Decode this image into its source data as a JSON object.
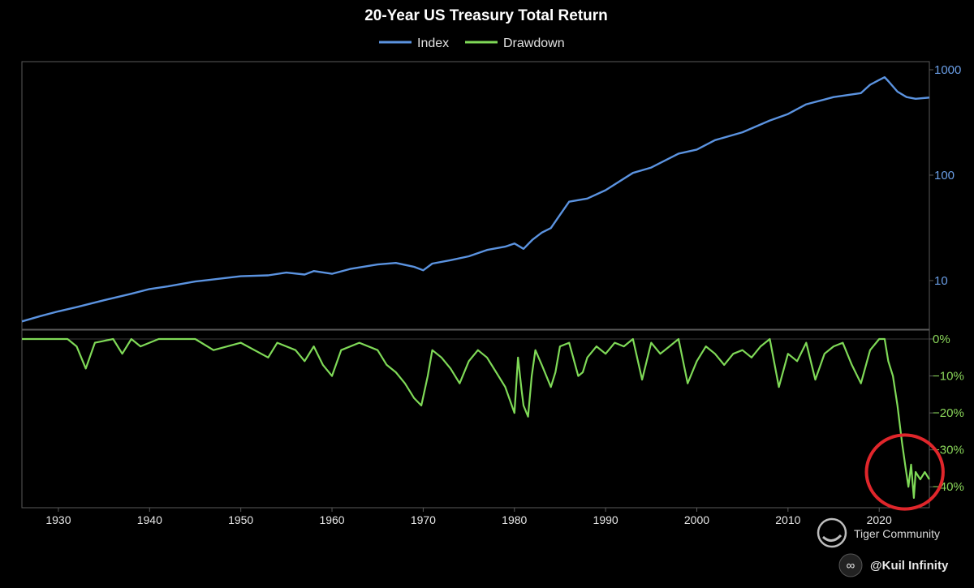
{
  "chart_data": {
    "type": "line",
    "title": "20-Year US Treasury Total Return",
    "legend": {
      "placement": "top-center",
      "entries": [
        "Index",
        "Drawdown"
      ]
    },
    "colors": {
      "index": "#5b93e0",
      "drawdown": "#7fd957",
      "annotation": "#e0262b",
      "frame": "#5a5a5a"
    },
    "xlim": [
      1926,
      2025.5
    ],
    "x_ticks": [
      1930,
      1940,
      1950,
      1960,
      1970,
      1980,
      1990,
      2000,
      2010,
      2020
    ],
    "x_tick_labels": [
      "1930",
      "1940",
      "1950",
      "1960",
      "1970",
      "1980",
      "1990",
      "2000",
      "2010",
      "2020"
    ],
    "panels": [
      {
        "series_key": "index",
        "scale": "log",
        "ylim": [
          4.5,
          1000
        ],
        "y_ticks": [
          10,
          100,
          1000
        ],
        "y_tick_labels": [
          "10",
          "100",
          "1000"
        ],
        "axis_side": "right"
      },
      {
        "series_key": "drawdown",
        "scale": "linear",
        "ylim": [
          -45,
          0
        ],
        "y_ticks": [
          0,
          -10,
          -20,
          -30,
          -40
        ],
        "y_tick_labels": [
          "0%",
          "−10%",
          "−20%",
          "−30%",
          "−40%"
        ],
        "axis_side": "right"
      }
    ],
    "series": [
      {
        "name": "Index",
        "key": "index",
        "x": [
          1926,
          1928,
          1930,
          1932,
          1935,
          1938,
          1940,
          1942,
          1945,
          1948,
          1950,
          1953,
          1955,
          1957,
          1958,
          1960,
          1962,
          1965,
          1967,
          1969,
          1970,
          1971,
          1973,
          1975,
          1977,
          1979,
          1980,
          1981,
          1982,
          1983,
          1984,
          1985,
          1986,
          1988,
          1990,
          1993,
          1995,
          1998,
          2000,
          2002,
          2005,
          2008,
          2010,
          2012,
          2015,
          2018,
          2019,
          2020,
          2020.6,
          2021,
          2022,
          2023,
          2024,
          2025.5
        ],
        "values": [
          4.1,
          4.6,
          5.1,
          5.6,
          6.5,
          7.5,
          8.3,
          8.8,
          9.8,
          10.5,
          11.0,
          11.2,
          11.9,
          11.4,
          12.3,
          11.6,
          12.9,
          14.2,
          14.7,
          13.5,
          12.5,
          14.5,
          15.6,
          17.0,
          19.5,
          21.0,
          22.5,
          20.0,
          24.5,
          28.5,
          31.5,
          42.0,
          56.0,
          60.0,
          72.0,
          105.0,
          118.0,
          160.0,
          175.0,
          215.0,
          255.0,
          330.0,
          380.0,
          470.0,
          550.0,
          600.0,
          720.0,
          800.0,
          850.0,
          780.0,
          620.0,
          550.0,
          530.0,
          545.0
        ]
      },
      {
        "name": "Drawdown",
        "key": "drawdown",
        "x": [
          1926,
          1931,
          1932,
          1933,
          1934,
          1936,
          1937,
          1938,
          1939,
          1941,
          1945,
          1947,
          1950,
          1953,
          1954,
          1956,
          1957,
          1958,
          1959,
          1960,
          1961,
          1963,
          1965,
          1966,
          1967,
          1968,
          1969,
          1969.8,
          1970.5,
          1971,
          1972,
          1973,
          1974,
          1975,
          1976,
          1977,
          1978,
          1979,
          1980,
          1980.4,
          1980.8,
          1981,
          1981.5,
          1981.9,
          1982.3,
          1983,
          1984,
          1984.5,
          1985,
          1986,
          1987,
          1987.5,
          1988,
          1989,
          1990,
          1991,
          1992,
          1993,
          1994,
          1995,
          1996,
          1997,
          1998,
          1999,
          2000,
          2001,
          2002,
          2003,
          2004,
          2005,
          2006,
          2007,
          2008,
          2009,
          2010,
          2011,
          2012,
          2013,
          2014,
          2015,
          2016,
          2017,
          2018,
          2019,
          2020,
          2020.6,
          2021,
          2021.5,
          2022,
          2022.5,
          2022.9,
          2023.2,
          2023.5,
          2023.8,
          2024,
          2024.5,
          2025,
          2025.5
        ],
        "values": [
          0,
          0,
          -2,
          -8,
          -1,
          0,
          -4,
          0,
          -2,
          0,
          0,
          -3,
          -1,
          -5,
          -1,
          -3,
          -6,
          -2,
          -7,
          -10,
          -3,
          -1,
          -3,
          -7,
          -9,
          -12,
          -16,
          -18,
          -10,
          -3,
          -5,
          -8,
          -12,
          -6,
          -3,
          -5,
          -9,
          -13,
          -20,
          -5,
          -14,
          -18,
          -21,
          -10,
          -3,
          -7,
          -13,
          -9,
          -2,
          -1,
          -10,
          -9,
          -5,
          -2,
          -4,
          -1,
          -2,
          0,
          -11,
          -1,
          -4,
          -2,
          0,
          -12,
          -6,
          -2,
          -4,
          -7,
          -4,
          -3,
          -5,
          -2,
          0,
          -13,
          -4,
          -6,
          -1,
          -11,
          -4,
          -2,
          -1,
          -7,
          -12,
          -3,
          0,
          0,
          -6,
          -10,
          -18,
          -28,
          -35,
          -40,
          -34,
          -43,
          -36,
          -38,
          -36,
          -38
        ]
      }
    ],
    "annotation": {
      "type": "ellipse",
      "x_center": 2022.8,
      "y_center": -36,
      "x_radius": 4.2,
      "y_radius": 10
    }
  },
  "watermark": {
    "brand": "Tiger Community",
    "handle": "@Kuil Infinity"
  }
}
